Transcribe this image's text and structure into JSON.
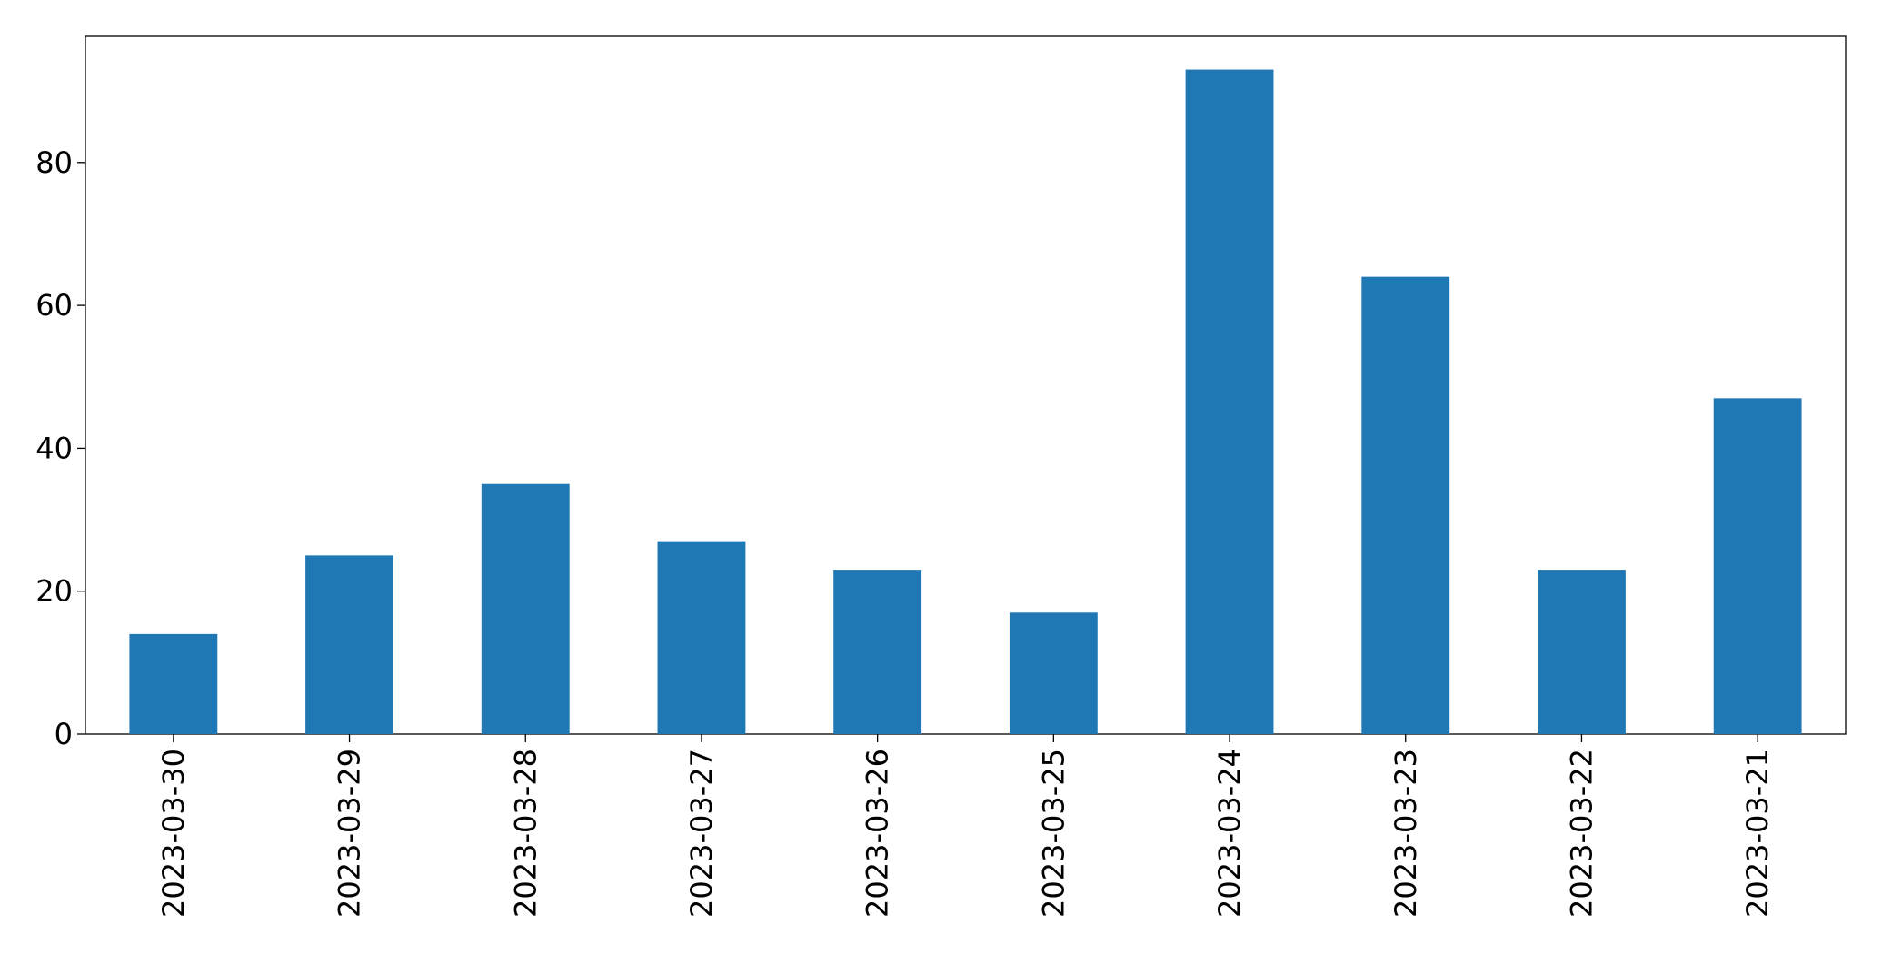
{
  "chart_data": {
    "type": "bar",
    "categories": [
      "2023-03-30",
      "2023-03-29",
      "2023-03-28",
      "2023-03-27",
      "2023-03-26",
      "2023-03-25",
      "2023-03-24",
      "2023-03-23",
      "2023-03-22",
      "2023-03-21"
    ],
    "values": [
      14,
      25,
      35,
      27,
      23,
      17,
      93,
      64,
      23,
      47
    ],
    "color": "#1f77b4",
    "ylim": [
      0,
      97.65
    ],
    "yticks": [
      0,
      20,
      40,
      60,
      80
    ],
    "grid": false
  }
}
